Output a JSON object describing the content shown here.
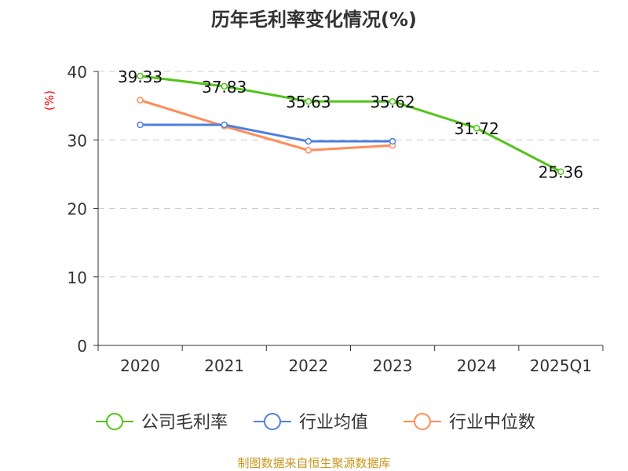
{
  "chart_data": {
    "type": "line",
    "title": "历年毛利率变化情况(%)",
    "ylabel": "(%)",
    "categories": [
      "2020",
      "2021",
      "2022",
      "2023",
      "2024",
      "2025Q1"
    ],
    "ylim": [
      0,
      40
    ],
    "yticks": [
      0,
      10,
      20,
      30,
      40
    ],
    "grid": true,
    "legend_position": "bottom",
    "series": [
      {
        "name": "公司毛利率",
        "color": "#52c41a",
        "values": [
          39.33,
          37.83,
          35.63,
          35.62,
          31.72,
          25.36
        ],
        "labels": [
          "39.33",
          "37.83",
          "35.63",
          "35.62",
          "31.72",
          "25.36"
        ]
      },
      {
        "name": "行业均值",
        "color": "#4e7fe0",
        "values": [
          32.2,
          32.2,
          29.8,
          29.8,
          null,
          null
        ]
      },
      {
        "name": "行业中位数",
        "color": "#ff8c57",
        "values": [
          35.8,
          32.0,
          28.5,
          29.2,
          null,
          null
        ]
      }
    ]
  },
  "footer": "制图数据来自恒生聚源数据库"
}
